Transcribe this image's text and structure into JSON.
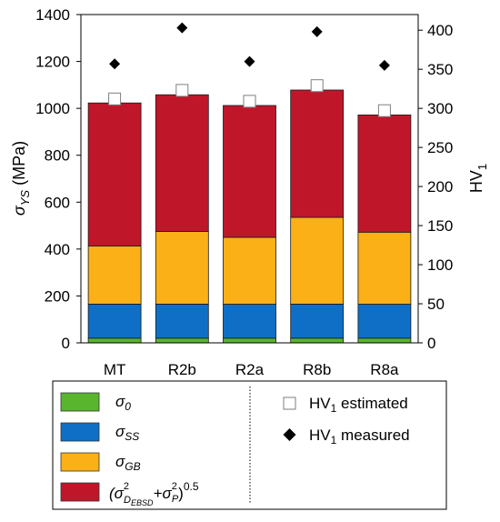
{
  "chart_data": {
    "type": "bar",
    "categories": [
      "MT",
      "R2b",
      "R2a",
      "R8b",
      "R8a"
    ],
    "series": [
      {
        "name": "σ0",
        "color": "#5ab52e",
        "values": [
          20,
          20,
          20,
          20,
          20
        ]
      },
      {
        "name": "σSS",
        "color": "#0f6fc6",
        "values": [
          145,
          145,
          145,
          145,
          145
        ]
      },
      {
        "name": "σGB",
        "color": "#fbb017",
        "values": [
          248,
          310,
          285,
          370,
          307
        ]
      },
      {
        "name": "(σD_EBSD² + σP²)^0.5",
        "color": "#c0162a",
        "values": [
          610,
          583,
          562,
          543,
          500
        ]
      }
    ],
    "secondary_series": [
      {
        "name": "HV1 estimated",
        "marker": "white-square",
        "values": [
          312,
          323,
          309,
          329,
          297
        ]
      },
      {
        "name": "HV1 measured",
        "marker": "black-diamond",
        "values": [
          357,
          403,
          360,
          398,
          355
        ]
      }
    ],
    "ylabel": "σYS (MPa)",
    "ylabel_parts": {
      "sym": "σ",
      "sub": "YS",
      "unit": " (MPa)"
    },
    "y2label": "HV1",
    "y2label_parts": {
      "main": "HV",
      "sub": "1"
    },
    "ylim": [
      0,
      1400
    ],
    "y2lim": [
      0,
      420
    ],
    "yticks": [
      0,
      200,
      400,
      600,
      800,
      1000,
      1200,
      1400
    ],
    "y2ticks": [
      0,
      50,
      100,
      150,
      200,
      250,
      300,
      350,
      400
    ],
    "grid": false,
    "legend_position": "bottom",
    "legend": {
      "stack_items": [
        {
          "sym": "σ",
          "sub": "0"
        },
        {
          "sym": "σ",
          "sub": "SS"
        },
        {
          "sym": "σ",
          "sub": "GB"
        },
        {
          "open": "(σ",
          "sub_a": "D",
          "sub_b": "EBSD",
          "sup_a": "2",
          "plus": "+σ",
          "sub_c": "P",
          "sup_c": "2",
          "close": ")",
          "sup_close": "0.5"
        }
      ],
      "marker_items": [
        {
          "main": "HV",
          "sub": "1",
          "rest": " estimated"
        },
        {
          "main": "HV",
          "sub": "1",
          "rest": " measured"
        }
      ]
    }
  }
}
